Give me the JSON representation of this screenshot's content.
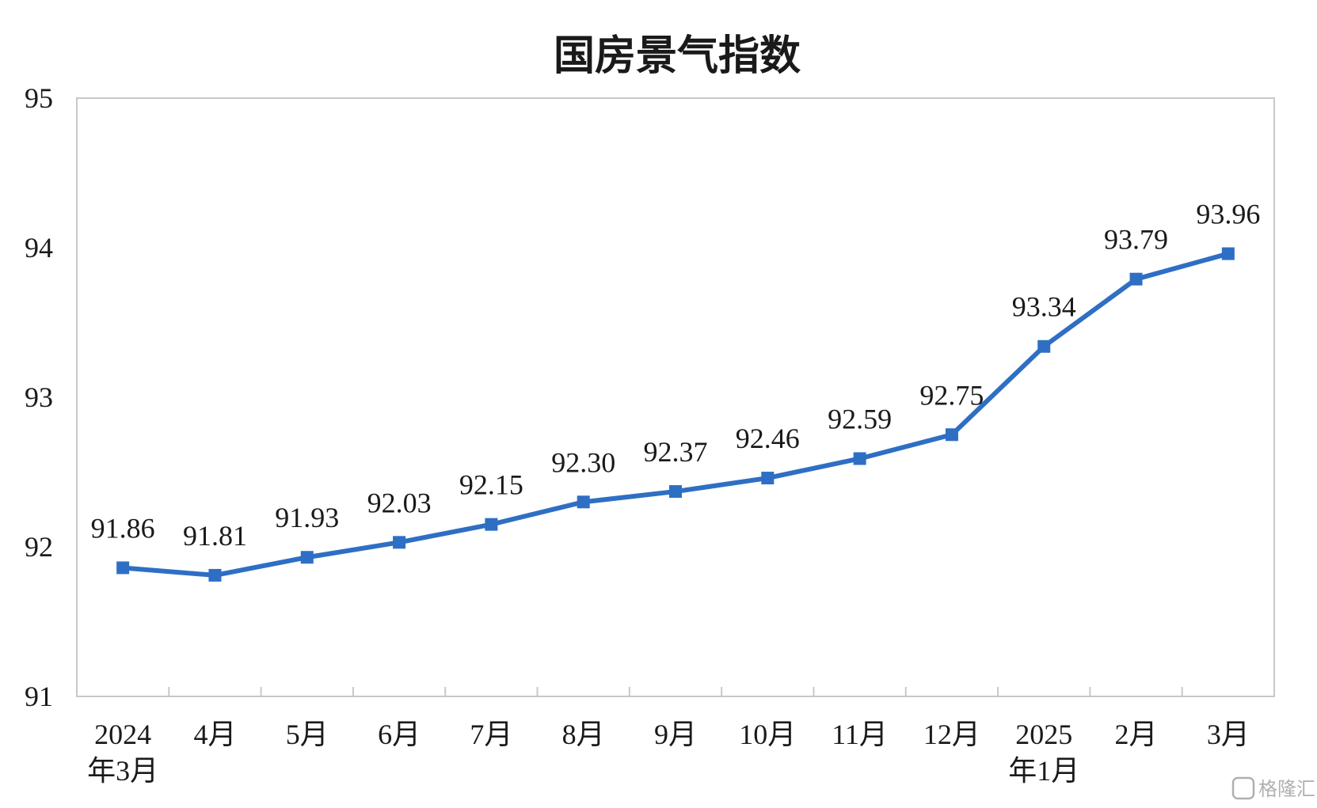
{
  "chart_data": {
    "type": "line",
    "title": "国房景气指数",
    "xlabel": "",
    "ylabel": "",
    "ylim": [
      91,
      95
    ],
    "yticks": [
      91,
      92,
      93,
      94,
      95
    ],
    "grid": false,
    "categories": [
      [
        "2024",
        "年3月"
      ],
      [
        "4月"
      ],
      [
        "5月"
      ],
      [
        "6月"
      ],
      [
        "7月"
      ],
      [
        "8月"
      ],
      [
        "9月"
      ],
      [
        "10月"
      ],
      [
        "11月"
      ],
      [
        "12月"
      ],
      [
        "2025",
        "年1月"
      ],
      [
        "2月"
      ],
      [
        "3月"
      ]
    ],
    "series": [
      {
        "name": "国房景气指数",
        "color": "#2e6fc4",
        "values": [
          91.86,
          91.81,
          91.93,
          92.03,
          92.15,
          92.3,
          92.37,
          92.46,
          92.59,
          92.75,
          93.34,
          93.79,
          93.96
        ],
        "labels": [
          "91.86",
          "91.81",
          "91.93",
          "92.03",
          "92.15",
          "92.30",
          "92.37",
          "92.46",
          "92.59",
          "92.75",
          "93.34",
          "93.79",
          "93.96"
        ]
      }
    ]
  },
  "watermark": {
    "text": "格隆汇"
  }
}
